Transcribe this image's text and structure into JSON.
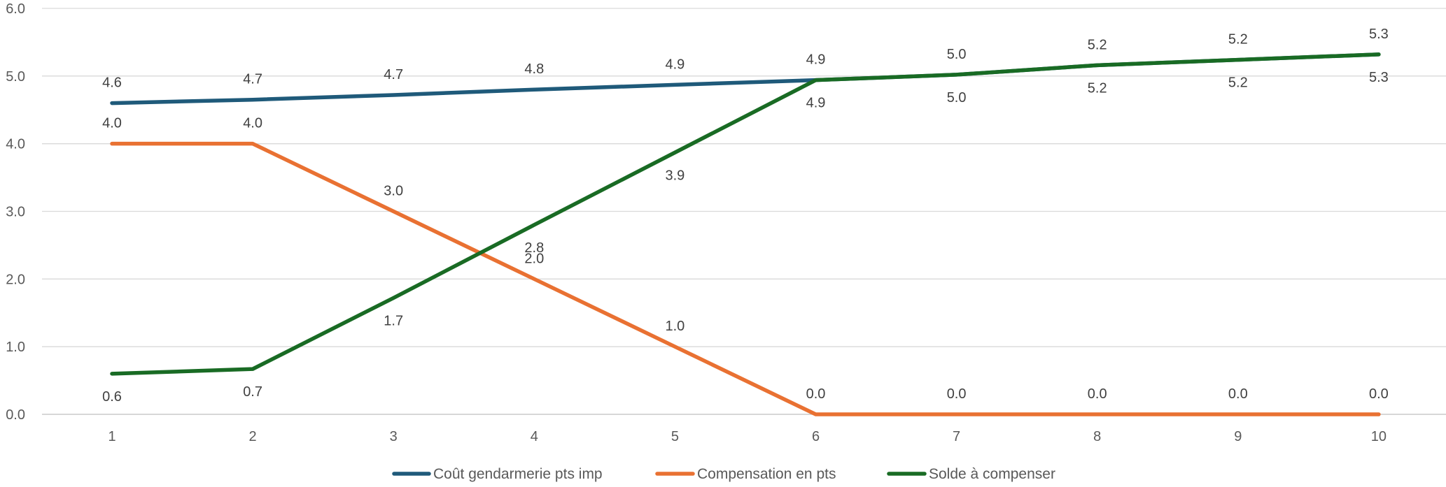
{
  "chart_data": {
    "type": "line",
    "title": "",
    "xlabel": "",
    "ylabel": "",
    "categories": [
      "1",
      "2",
      "3",
      "4",
      "5",
      "6",
      "7",
      "8",
      "9",
      "10"
    ],
    "ylim": [
      0,
      6
    ],
    "yticks": [
      "0.0",
      "1.0",
      "2.0",
      "3.0",
      "4.0",
      "5.0",
      "6.0"
    ],
    "grid": true,
    "legend_position": "bottom",
    "series": [
      {
        "name": "Coût gendarmerie pts imp",
        "color": "#1F5A7A",
        "values": [
          4.6,
          4.65,
          4.72,
          4.8,
          4.87,
          4.94,
          5.02,
          5.16,
          5.24,
          5.32
        ],
        "labels": [
          "4.6",
          "4.7",
          "4.7",
          "4.8",
          "4.9",
          "4.9",
          "5.0",
          "5.2",
          "5.2",
          "5.3"
        ],
        "label_position": "above"
      },
      {
        "name": "Compensation en pts",
        "color": "#E97132",
        "values": [
          4.0,
          4.0,
          3.0,
          2.0,
          1.0,
          0.0,
          0.0,
          0.0,
          0.0,
          0.0
        ],
        "labels": [
          "4.0",
          "4.0",
          "3.0",
          "2.0",
          "1.0",
          "0.0",
          "0.0",
          "0.0",
          "0.0",
          "0.0"
        ],
        "label_position": "above"
      },
      {
        "name": "Solde à compenser",
        "color": "#196B24",
        "values": [
          0.6,
          0.67,
          1.72,
          2.8,
          3.87,
          4.94,
          5.02,
          5.16,
          5.24,
          5.32
        ],
        "labels": [
          "0.6",
          "0.7",
          "1.7",
          "2.8",
          "3.9",
          "4.9",
          "5.0",
          "5.2",
          "5.2",
          "5.3"
        ],
        "label_position": "below"
      }
    ]
  }
}
